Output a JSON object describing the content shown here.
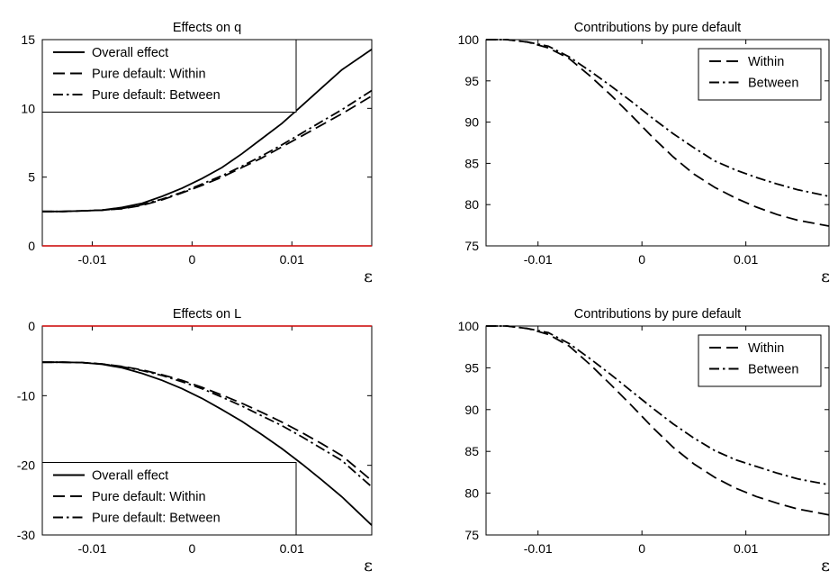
{
  "chart_data": [
    {
      "type": "line",
      "title": "Effects on q",
      "xlabel": "ε",
      "xlim": [
        -0.015,
        0.018
      ],
      "ylim": [
        0,
        15
      ],
      "xticks": [
        -0.01,
        0,
        0.01
      ],
      "xtick_labels": [
        "-0.01",
        "0",
        "0.01"
      ],
      "yticks": [
        0,
        5,
        10,
        15
      ],
      "ytick_labels": [
        "0",
        "5",
        "10",
        "15"
      ],
      "grid": false,
      "legend_position": "top-left",
      "zero_line": true,
      "zero_line_color": "#cc0000",
      "series": [
        {
          "name": "Overall effect",
          "dash": "solid",
          "x": [
            -0.015,
            -0.013,
            -0.011,
            -0.009,
            -0.007,
            -0.005,
            -0.003,
            -0.001,
            0.001,
            0.003,
            0.005,
            0.007,
            0.009,
            0.011,
            0.013,
            0.015,
            0.018
          ],
          "y": [
            2.5,
            2.5,
            2.55,
            2.6,
            2.8,
            3.1,
            3.6,
            4.2,
            4.9,
            5.7,
            6.7,
            7.8,
            8.9,
            10.2,
            11.5,
            12.8,
            14.3
          ]
        },
        {
          "name": "Pure default: Within",
          "dash": "dash",
          "x": [
            -0.015,
            -0.013,
            -0.011,
            -0.009,
            -0.007,
            -0.005,
            -0.003,
            -0.001,
            0.001,
            0.003,
            0.005,
            0.007,
            0.009,
            0.011,
            0.013,
            0.015,
            0.018
          ],
          "y": [
            2.5,
            2.5,
            2.55,
            2.6,
            2.7,
            2.95,
            3.35,
            3.85,
            4.4,
            5.0,
            5.7,
            6.4,
            7.2,
            8.0,
            8.8,
            9.6,
            10.9
          ]
        },
        {
          "name": "Pure default: Between",
          "dash": "dashdot",
          "x": [
            -0.015,
            -0.013,
            -0.011,
            -0.009,
            -0.007,
            -0.005,
            -0.003,
            -0.001,
            0.001,
            0.003,
            0.005,
            0.007,
            0.009,
            0.011,
            0.013,
            0.015,
            0.018
          ],
          "y": [
            2.5,
            2.5,
            2.55,
            2.6,
            2.72,
            3.0,
            3.4,
            3.9,
            4.5,
            5.1,
            5.8,
            6.55,
            7.35,
            8.2,
            9.05,
            9.9,
            11.3
          ]
        }
      ]
    },
    {
      "type": "line",
      "title": "Contributions by pure default",
      "xlabel": "ε",
      "xlim": [
        -0.015,
        0.018
      ],
      "ylim": [
        75,
        100
      ],
      "xticks": [
        -0.01,
        0,
        0.01
      ],
      "xtick_labels": [
        "-0.01",
        "0",
        "0.01"
      ],
      "yticks": [
        75,
        80,
        85,
        90,
        95,
        100
      ],
      "ytick_labels": [
        "75",
        "80",
        "85",
        "90",
        "95",
        "100"
      ],
      "grid": false,
      "legend_position": "top-right",
      "zero_line": false,
      "series": [
        {
          "name": "Within",
          "dash": "dash",
          "x": [
            -0.015,
            -0.013,
            -0.011,
            -0.009,
            -0.007,
            -0.005,
            -0.003,
            -0.001,
            0.001,
            0.003,
            0.005,
            0.007,
            0.009,
            0.011,
            0.013,
            0.015,
            0.018
          ],
          "y": [
            100,
            100,
            99.7,
            99.0,
            97.7,
            95.6,
            93.3,
            90.8,
            88.2,
            85.8,
            83.7,
            82.1,
            80.8,
            79.7,
            78.8,
            78.1,
            77.4
          ]
        },
        {
          "name": "Between",
          "dash": "dashdot",
          "x": [
            -0.015,
            -0.013,
            -0.011,
            -0.009,
            -0.007,
            -0.005,
            -0.003,
            -0.001,
            0.001,
            0.003,
            0.005,
            0.007,
            0.009,
            0.011,
            0.013,
            0.015,
            0.018
          ],
          "y": [
            100,
            100,
            99.7,
            99.2,
            97.9,
            96.2,
            94.4,
            92.5,
            90.5,
            88.6,
            86.9,
            85.3,
            84.2,
            83.3,
            82.5,
            81.8,
            81.0
          ]
        }
      ]
    },
    {
      "type": "line",
      "title": "Effects on L",
      "xlabel": "ε",
      "xlim": [
        -0.015,
        0.018
      ],
      "ylim": [
        -30,
        0
      ],
      "xticks": [
        -0.01,
        0,
        0.01
      ],
      "xtick_labels": [
        "-0.01",
        "0",
        "0.01"
      ],
      "yticks": [
        -30,
        -20,
        -10,
        0
      ],
      "ytick_labels": [
        "-30",
        "-20",
        "-10",
        "0"
      ],
      "grid": false,
      "legend_position": "bottom-left",
      "zero_line": true,
      "zero_line_color": "#cc0000",
      "series": [
        {
          "name": "Overall effect",
          "dash": "solid",
          "x": [
            -0.015,
            -0.013,
            -0.011,
            -0.009,
            -0.007,
            -0.005,
            -0.003,
            -0.001,
            0.001,
            0.003,
            0.005,
            0.007,
            0.009,
            0.011,
            0.013,
            0.015,
            0.018
          ],
          "y": [
            -5.2,
            -5.2,
            -5.25,
            -5.5,
            -6.0,
            -6.8,
            -7.8,
            -9.0,
            -10.4,
            -12.0,
            -13.7,
            -15.6,
            -17.6,
            -19.8,
            -22.1,
            -24.5,
            -28.6
          ]
        },
        {
          "name": "Pure default: Within",
          "dash": "dash",
          "x": [
            -0.015,
            -0.013,
            -0.011,
            -0.009,
            -0.007,
            -0.005,
            -0.003,
            -0.001,
            0.001,
            0.003,
            0.005,
            0.007,
            0.009,
            0.011,
            0.013,
            0.015,
            0.018
          ],
          "y": [
            -5.2,
            -5.2,
            -5.25,
            -5.45,
            -5.8,
            -6.3,
            -7.0,
            -7.8,
            -8.8,
            -9.9,
            -11.1,
            -12.4,
            -13.8,
            -15.3,
            -16.9,
            -18.6,
            -22.2
          ]
        },
        {
          "name": "Pure default: Between",
          "dash": "dashdot",
          "x": [
            -0.015,
            -0.013,
            -0.011,
            -0.009,
            -0.007,
            -0.005,
            -0.003,
            -0.001,
            0.001,
            0.003,
            0.005,
            0.007,
            0.009,
            0.011,
            0.013,
            0.015,
            0.018
          ],
          "y": [
            -5.2,
            -5.2,
            -5.25,
            -5.45,
            -5.85,
            -6.4,
            -7.1,
            -8.0,
            -9.0,
            -10.2,
            -11.5,
            -12.9,
            -14.3,
            -15.9,
            -17.6,
            -19.3,
            -23.1
          ]
        }
      ]
    },
    {
      "type": "line",
      "title": "Contributions by pure default",
      "xlabel": "ε",
      "xlim": [
        -0.015,
        0.018
      ],
      "ylim": [
        75,
        100
      ],
      "xticks": [
        -0.01,
        0,
        0.01
      ],
      "xtick_labels": [
        "-0.01",
        "0",
        "0.01"
      ],
      "yticks": [
        75,
        80,
        85,
        90,
        95,
        100
      ],
      "ytick_labels": [
        "75",
        "80",
        "85",
        "90",
        "95",
        "100"
      ],
      "grid": false,
      "legend_position": "top-right",
      "zero_line": false,
      "series": [
        {
          "name": "Within",
          "dash": "dash",
          "x": [
            -0.015,
            -0.013,
            -0.011,
            -0.009,
            -0.007,
            -0.005,
            -0.003,
            -0.001,
            0.001,
            0.003,
            0.005,
            0.007,
            0.009,
            0.011,
            0.013,
            0.015,
            0.018
          ],
          "y": [
            100,
            100,
            99.7,
            99.0,
            97.6,
            95.4,
            93.0,
            90.5,
            87.9,
            85.5,
            83.5,
            81.9,
            80.6,
            79.6,
            78.8,
            78.1,
            77.4
          ]
        },
        {
          "name": "Between",
          "dash": "dashdot",
          "x": [
            -0.015,
            -0.013,
            -0.011,
            -0.009,
            -0.007,
            -0.005,
            -0.003,
            -0.001,
            0.001,
            0.003,
            0.005,
            0.007,
            0.009,
            0.011,
            0.013,
            0.015,
            0.018
          ],
          "y": [
            100,
            100,
            99.7,
            99.2,
            97.9,
            96.1,
            94.2,
            92.2,
            90.2,
            88.3,
            86.6,
            85.1,
            84.0,
            83.2,
            82.4,
            81.7,
            81.0
          ]
        }
      ]
    }
  ]
}
